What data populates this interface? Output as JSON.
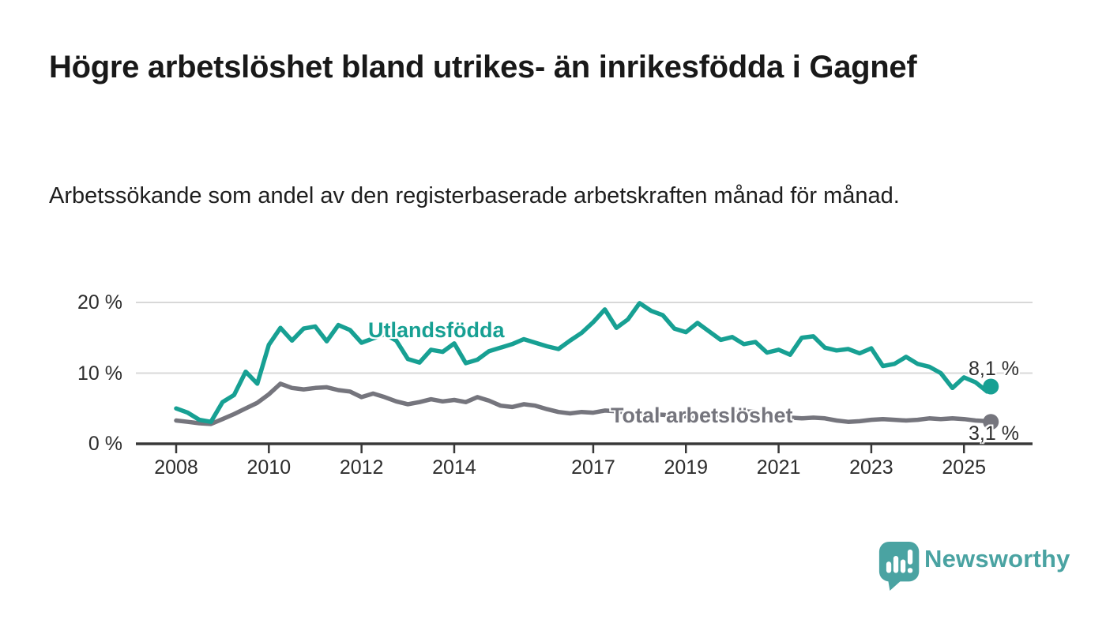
{
  "header": {
    "title": "Högre arbetslöshet bland utrikes- än inrikesfödda i Gagnef",
    "subtitle": "Arbetssökande som andel av den registerbaserade arbetskraften månad för månad."
  },
  "chart_data": {
    "type": "line",
    "title": "Högre arbetslöshet bland utrikes- än inrikesfödda i Gagnef",
    "subtitle": "Arbetssökande som andel av den registerbaserade arbetskraften månad för månad.",
    "xlabel": "",
    "ylabel": "",
    "unit": "%",
    "grid": "horizontal",
    "legend_position": "inline-labels",
    "ylim": [
      0,
      21
    ],
    "y_tick_values": [
      0,
      10,
      20
    ],
    "y_ticks": [
      "0 %",
      "10 %",
      "20 %"
    ],
    "x_ticks": [
      2008,
      2010,
      2012,
      2014,
      2017,
      2019,
      2021,
      2023,
      2025
    ],
    "x_range": [
      2008,
      2025.58
    ],
    "x": [
      2008,
      2008.25,
      2008.5,
      2008.75,
      2009,
      2009.25,
      2009.5,
      2009.75,
      2010,
      2010.25,
      2010.5,
      2010.75,
      2011,
      2011.25,
      2011.5,
      2011.75,
      2012,
      2012.25,
      2012.5,
      2012.75,
      2013,
      2013.25,
      2013.5,
      2013.75,
      2014,
      2014.25,
      2014.5,
      2014.75,
      2015,
      2015.25,
      2015.5,
      2015.75,
      2016,
      2016.25,
      2016.5,
      2016.75,
      2017,
      2017.25,
      2017.5,
      2017.75,
      2018,
      2018.25,
      2018.5,
      2018.75,
      2019,
      2019.25,
      2019.5,
      2019.75,
      2020,
      2020.25,
      2020.5,
      2020.75,
      2021,
      2021.25,
      2021.5,
      2021.75,
      2022,
      2022.25,
      2022.5,
      2022.75,
      2023,
      2023.25,
      2023.5,
      2023.75,
      2024,
      2024.25,
      2024.5,
      2024.75,
      2025,
      2025.25,
      2025.5,
      2025.58
    ],
    "series": [
      {
        "name": "Utlandsfödda",
        "color": "#17a093",
        "end_label": "8,1 %",
        "end_value": 8.1,
        "values": [
          5.0,
          4.4,
          3.4,
          3.1,
          5.9,
          6.9,
          10.2,
          8.5,
          14.0,
          16.4,
          14.6,
          16.3,
          16.6,
          14.5,
          16.8,
          16.1,
          14.3,
          14.9,
          15.5,
          14.6,
          12.0,
          11.5,
          13.3,
          13.0,
          14.2,
          11.4,
          11.9,
          13.1,
          13.6,
          14.1,
          14.8,
          14.3,
          13.8,
          13.4,
          14.6,
          15.7,
          17.2,
          19.0,
          16.4,
          17.6,
          19.9,
          18.8,
          18.2,
          16.3,
          15.8,
          17.1,
          15.9,
          14.7,
          15.1,
          14.1,
          14.4,
          12.9,
          13.3,
          12.6,
          15.0,
          15.2,
          13.6,
          13.2,
          13.4,
          12.8,
          13.5,
          11.0,
          11.3,
          12.3,
          11.3,
          10.9,
          10.0,
          7.9,
          9.4,
          8.7,
          7.4,
          8.1
        ]
      },
      {
        "name": "Total arbetslöshet",
        "color": "#75757d",
        "end_label": "3,1 %",
        "end_value": 3.1,
        "values": [
          3.3,
          3.1,
          2.9,
          2.8,
          3.5,
          4.2,
          5.0,
          5.8,
          7.0,
          8.5,
          7.9,
          7.7,
          7.9,
          8.0,
          7.6,
          7.4,
          6.6,
          7.1,
          6.6,
          6.0,
          5.6,
          5.9,
          6.3,
          6.0,
          6.2,
          5.9,
          6.6,
          6.1,
          5.4,
          5.2,
          5.6,
          5.4,
          4.9,
          4.5,
          4.3,
          4.5,
          4.4,
          4.7,
          4.6,
          4.4,
          4.3,
          4.2,
          4.1,
          4.0,
          3.9,
          3.9,
          4.0,
          4.1,
          4.2,
          4.6,
          4.5,
          4.2,
          4.0,
          3.7,
          3.6,
          3.7,
          3.6,
          3.3,
          3.1,
          3.2,
          3.4,
          3.5,
          3.4,
          3.3,
          3.4,
          3.6,
          3.5,
          3.6,
          3.5,
          3.3,
          3.2,
          3.1
        ]
      }
    ],
    "colors": {
      "axis": "#383838",
      "gridline": "#d8d8d8",
      "tick_label": "#2d2d2d"
    }
  },
  "footer": {
    "brand": "Newsworthy",
    "brand_color": "#4aa3a2",
    "logo_icon": "newsworthy-speech-bubble-bar-chart-icon"
  }
}
